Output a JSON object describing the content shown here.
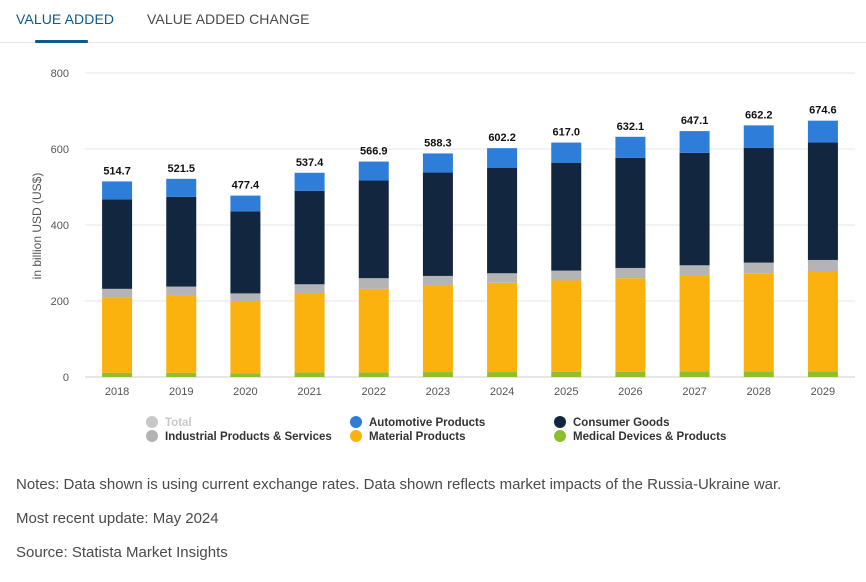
{
  "tabs": [
    {
      "label": "VALUE ADDED",
      "active": true
    },
    {
      "label": "VALUE ADDED CHANGE",
      "active": false
    }
  ],
  "colors": {
    "accent": "#0b5c8c",
    "total": "#c8c8c8",
    "automotive": "#2d7dd9",
    "consumer": "#12263f",
    "industrial": "#b4b4b4",
    "material": "#fbb20f",
    "medical": "#8cbf2b"
  },
  "chart_data": {
    "type": "bar",
    "stacked": true,
    "ylabel": "in billion USD (US$)",
    "ylim": [
      0,
      800
    ],
    "yticks": [
      0,
      200,
      400,
      600,
      800
    ],
    "grid": true,
    "legend_position": "bottom",
    "categories": [
      "2018",
      "2019",
      "2020",
      "2021",
      "2022",
      "2023",
      "2024",
      "2025",
      "2026",
      "2027",
      "2028",
      "2029"
    ],
    "totals": [
      514.7,
      521.5,
      477.4,
      537.4,
      566.9,
      588.3,
      602.2,
      617.0,
      632.1,
      647.1,
      662.2,
      674.6
    ],
    "total_labels": [
      "514.7",
      "521.5",
      "477.4",
      "537.4",
      "566.9",
      "588.3",
      "602.2",
      "617.0",
      "632.1",
      "647.1",
      "662.2",
      "674.6"
    ],
    "series": [
      {
        "name": "Medical Devices & Products",
        "color": "#8cbf2b",
        "values": [
          11,
          11,
          10,
          12,
          12,
          13,
          13,
          14,
          14,
          15,
          15,
          15
        ]
      },
      {
        "name": "Material Products",
        "color": "#fbb20f",
        "values": [
          198,
          205,
          190,
          209,
          220,
          229,
          235,
          240,
          246,
          251,
          258,
          264
        ]
      },
      {
        "name": "Industrial Products & Services",
        "color": "#b4b4b4",
        "values": [
          23,
          22,
          20,
          23,
          28,
          24,
          25,
          26,
          27,
          28,
          28,
          29
        ]
      },
      {
        "name": "Consumer Goods",
        "color": "#12263f",
        "values": [
          235,
          236,
          216,
          246,
          257,
          272,
          277,
          284,
          290,
          296,
          302,
          309
        ]
      },
      {
        "name": "Automotive Products",
        "color": "#2d7dd9",
        "values": [
          47.7,
          47.5,
          41.4,
          47.4,
          49.9,
          50.3,
          52.2,
          53.0,
          55.1,
          57.1,
          59.2,
          57.6
        ]
      }
    ]
  },
  "legend": {
    "total": "Total",
    "automotive": "Automotive Products",
    "consumer": "Consumer Goods",
    "industrial": "Industrial Products & Services",
    "material": "Material Products",
    "medical": "Medical Devices & Products"
  },
  "notes": {
    "text": "Notes: Data shown is using current exchange rates. Data shown reflects market impacts of the Russia-Ukraine war.",
    "update": "Most recent update: May 2024",
    "source": "Source: Statista Market Insights"
  }
}
